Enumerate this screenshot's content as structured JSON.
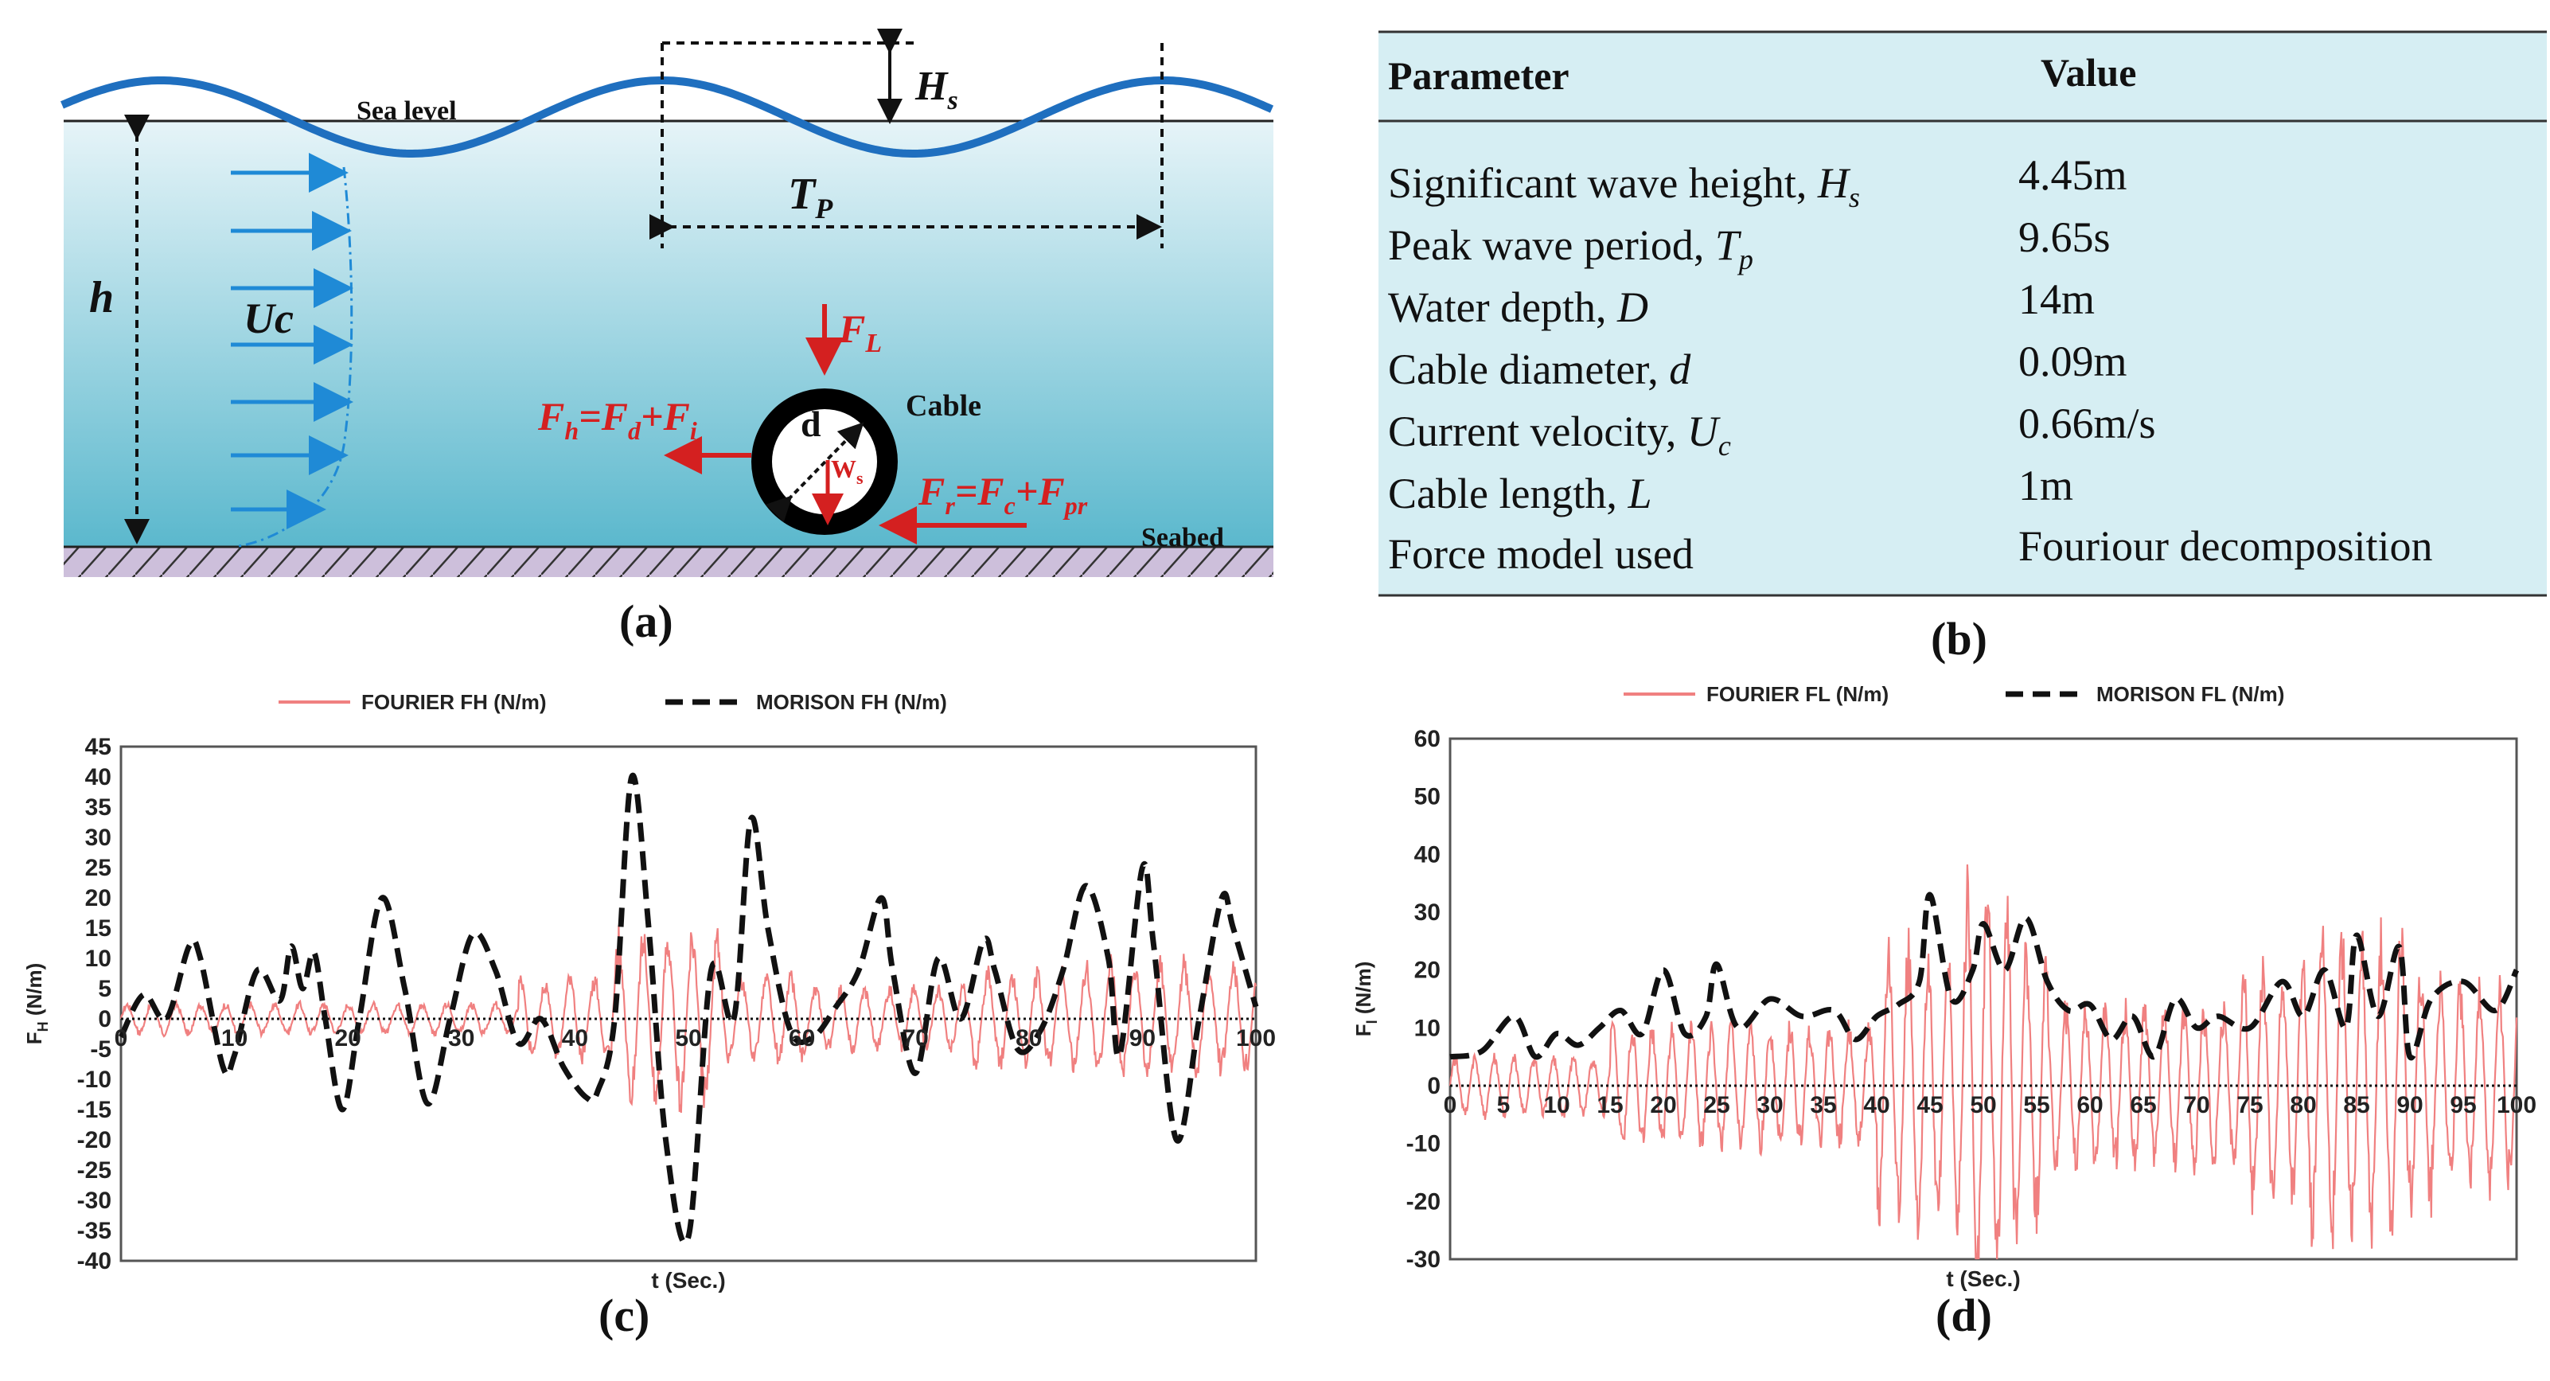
{
  "panels": {
    "a": "(a)",
    "b": "(b)",
    "c": "(c)",
    "d": "(d)"
  },
  "diagram": {
    "sea_level": "Sea level",
    "seabed": "Seabed",
    "hs": "H",
    "hs_sub": "s",
    "tp": "T",
    "tp_sub": "P",
    "h": "h",
    "uc": "Uc",
    "fl": "F",
    "fl_sub": "L",
    "d": "d",
    "cable": "Cable",
    "ws": "W",
    "ws_sub": "s",
    "fh_eq": "F",
    "fh_eq_parts": [
      "h",
      "=F",
      "d",
      "+F",
      "i"
    ],
    "fr_eq_parts": [
      "r",
      "=F",
      "c",
      "+F",
      "pr"
    ],
    "colors": {
      "wave": "#1f6fbf",
      "force": "#d42020",
      "water_top": "#d5ecf2",
      "water_bottom": "#5db9cf",
      "seabed": "#c9b8d6"
    }
  },
  "table": {
    "header_param": "Parameter",
    "header_value": "Value",
    "rows": [
      {
        "label": "Significant wave height,",
        "sym": "H",
        "sub": "s",
        "value": "4.45m"
      },
      {
        "label": "Peak wave period,",
        "sym": "T",
        "sub": "p",
        "value": "9.65s"
      },
      {
        "label": "Water depth,",
        "sym": "D",
        "sub": "",
        "value": "14m"
      },
      {
        "label": "Cable diameter,",
        "sym": "d",
        "sub": "",
        "value": "0.09m"
      },
      {
        "label": "Current velocity,",
        "sym": "U",
        "sub": "c",
        "value": "0.66m/s"
      },
      {
        "label": "Cable length,",
        "sym": "L",
        "sub": "",
        "value": "1m"
      },
      {
        "label": "Force model used",
        "sym": "",
        "sub": "",
        "value": "Fouriour decomposition"
      }
    ],
    "bg_color": "#d6eef3"
  },
  "chart_data": [
    {
      "id": "c",
      "type": "line",
      "title": "",
      "xlabel": "t (Sec.)",
      "ylabel": "F",
      "ylabel_sub": "H",
      "ylabel_unit": " (N/m)",
      "xlim": [
        0,
        100
      ],
      "ylim": [
        -40,
        45
      ],
      "xticks": [
        0,
        10,
        20,
        30,
        40,
        50,
        60,
        70,
        80,
        90,
        100
      ],
      "yticks": [
        45,
        40,
        35,
        30,
        25,
        20,
        15,
        10,
        5,
        0,
        -5,
        -10,
        -15,
        -20,
        -25,
        -30,
        -35,
        -40
      ],
      "series": [
        {
          "name": "FOURIER FH (N/m)",
          "color": "#f08080",
          "style": "solid"
        },
        {
          "name": "MORISON FH (N/m)",
          "color": "#111111",
          "style": "dashed",
          "x": [
            0,
            2,
            4,
            6,
            7,
            9,
            10,
            12,
            14,
            15,
            16,
            17,
            18,
            19.5,
            21,
            23,
            25,
            27,
            29,
            31,
            33,
            35,
            37,
            39,
            41,
            42,
            43.5,
            45,
            46.5,
            48,
            50,
            52,
            54,
            55.5,
            57,
            59,
            61,
            63,
            65,
            67,
            68,
            70,
            72,
            74,
            76,
            77,
            79,
            81,
            83,
            85,
            87,
            88,
            90,
            91,
            93,
            95,
            97,
            98,
            100
          ],
          "y": [
            -3,
            4,
            0,
            12,
            10,
            -8,
            -6,
            8,
            3,
            12,
            5,
            11,
            0,
            -15,
            0,
            20,
            5,
            -14,
            0,
            14,
            8,
            -4,
            0,
            -8,
            -13,
            -12,
            0,
            40,
            15,
            -20,
            -36,
            8,
            0,
            33,
            15,
            -2,
            -3,
            2,
            8,
            20,
            8,
            -9,
            10,
            0,
            13,
            8,
            -5,
            -2,
            8,
            22,
            10,
            -6,
            25,
            12,
            -20,
            0,
            20,
            15,
            2
          ]
        }
      ]
    },
    {
      "id": "d",
      "type": "line",
      "title": "",
      "xlabel": "t (Sec.)",
      "ylabel": "F",
      "ylabel_sub": "l",
      "ylabel_unit": " (N/m)",
      "xlim": [
        0,
        100
      ],
      "ylim": [
        -30,
        60
      ],
      "xticks": [
        0,
        5,
        10,
        15,
        20,
        25,
        30,
        35,
        40,
        45,
        50,
        55,
        60,
        65,
        70,
        75,
        80,
        85,
        90,
        95,
        100
      ],
      "yticks": [
        60,
        50,
        40,
        30,
        20,
        10,
        0,
        -10,
        -20,
        -30
      ],
      "series": [
        {
          "name": "FOURIER FL (N/m)",
          "color": "#f08080",
          "style": "solid"
        },
        {
          "name": "MORISON FL (N/m)",
          "color": "#111111",
          "style": "dashed",
          "x": [
            0,
            3,
            6,
            8,
            10,
            12,
            14,
            16,
            18,
            20,
            22,
            24,
            25,
            27,
            30,
            33,
            36,
            38,
            40,
            42,
            44,
            45,
            47,
            49,
            50,
            52,
            54,
            56,
            58,
            60,
            62,
            64,
            66,
            68,
            70,
            72,
            75,
            78,
            80,
            82,
            84,
            85,
            87,
            89,
            90,
            92,
            95,
            98,
            100
          ],
          "y": [
            5,
            6,
            12,
            5,
            9,
            7,
            10,
            13,
            9,
            20,
            9,
            12,
            21,
            10,
            15,
            12,
            13,
            8,
            12,
            14,
            18,
            33,
            15,
            20,
            28,
            20,
            29,
            18,
            13,
            14,
            8,
            12,
            5,
            15,
            10,
            12,
            10,
            18,
            12,
            20,
            10,
            26,
            12,
            24,
            5,
            15,
            18,
            13,
            20
          ]
        }
      ]
    }
  ]
}
